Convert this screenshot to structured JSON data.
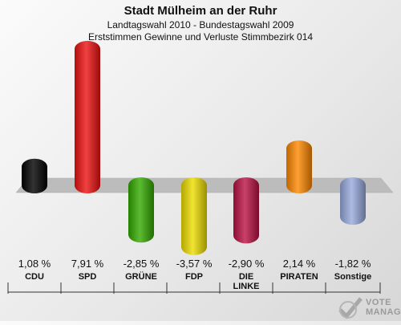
{
  "header": {
    "title": "Stadt Mülheim an der Ruhr",
    "subtitle1": "Landtagswahl 2010 - Bundestagswahl 2009",
    "subtitle2": "Erststimmen Gewinne und Verluste Stimmbezirk 014"
  },
  "chart_data": {
    "type": "bar",
    "categories": [
      "CDU",
      "SPD",
      "GRÜNE",
      "FDP",
      "DIE LINKE",
      "PIRATEN",
      "Sonstige"
    ],
    "values": [
      1.08,
      7.91,
      -2.85,
      -3.57,
      -2.9,
      2.14,
      -1.82
    ],
    "value_labels": [
      "1,08 %",
      "7,91 %",
      "-2,85 %",
      "-3,57 %",
      "-2,90 %",
      "2,14 %",
      "-1,82 %"
    ],
    "category_lines": [
      [
        "CDU"
      ],
      [
        "SPD"
      ],
      [
        "GRÜNE"
      ],
      [
        "FDP"
      ],
      [
        "DIE",
        "LINKE"
      ],
      [
        "PIRATEN"
      ],
      [
        "Sonstige"
      ]
    ],
    "colors": [
      "#000000",
      "#ee1111",
      "#33aa00",
      "#eedd00",
      "#bb1144",
      "#ff8800",
      "#99aadd"
    ],
    "unit": "%"
  },
  "watermark": {
    "line1": "VOTE",
    "line2": "MANAGER"
  }
}
